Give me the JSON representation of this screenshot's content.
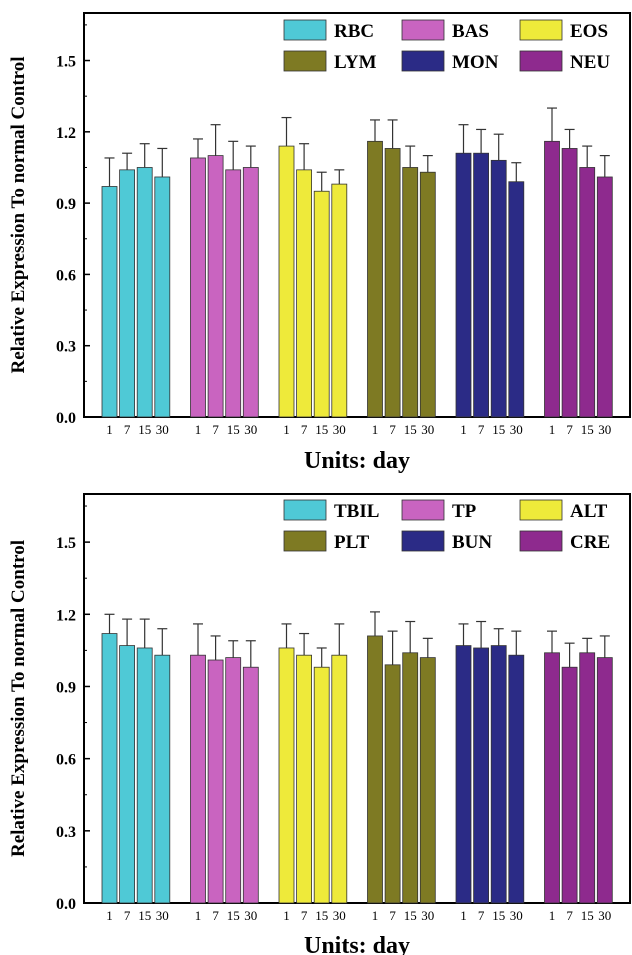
{
  "chart_data": [
    {
      "type": "bar",
      "title": "",
      "ylabel": "Relative Expression To normal Control",
      "xlabel": "Units: day",
      "ylim": [
        0,
        1.7
      ],
      "yticks": [
        "0.0",
        "0.3",
        "0.6",
        "0.9",
        "1.2",
        "1.5"
      ],
      "group_tick_labels": [
        "1",
        "7",
        "15",
        "30"
      ],
      "legend_position": "top-right",
      "series": [
        {
          "name": "RBC",
          "color": "#4fc9d6",
          "values": [
            0.97,
            1.04,
            1.05,
            1.01
          ],
          "errors": [
            0.12,
            0.07,
            0.1,
            0.12
          ]
        },
        {
          "name": "BAS",
          "color": "#c964c0",
          "values": [
            1.09,
            1.1,
            1.04,
            1.05
          ],
          "errors": [
            0.08,
            0.13,
            0.12,
            0.09
          ]
        },
        {
          "name": "EOS",
          "color": "#eeea3a",
          "values": [
            1.14,
            1.04,
            0.95,
            0.98
          ],
          "errors": [
            0.12,
            0.11,
            0.08,
            0.06
          ]
        },
        {
          "name": "LYM",
          "color": "#7e7a23",
          "values": [
            1.16,
            1.13,
            1.05,
            1.03
          ],
          "errors": [
            0.09,
            0.12,
            0.09,
            0.07
          ]
        },
        {
          "name": "MON",
          "color": "#2b2b86",
          "values": [
            1.11,
            1.11,
            1.08,
            0.99
          ],
          "errors": [
            0.12,
            0.1,
            0.11,
            0.08
          ]
        },
        {
          "name": "NEU",
          "color": "#8e2a8e",
          "values": [
            1.16,
            1.13,
            1.05,
            1.01
          ],
          "errors": [
            0.14,
            0.08,
            0.09,
            0.09
          ]
        }
      ]
    },
    {
      "type": "bar",
      "title": "",
      "ylabel": "Relative Expression To normal Control",
      "xlabel": "Units: day",
      "ylim": [
        0,
        1.7
      ],
      "yticks": [
        "0.0",
        "0.3",
        "0.6",
        "0.9",
        "1.2",
        "1.5"
      ],
      "group_tick_labels": [
        "1",
        "7",
        "15",
        "30"
      ],
      "legend_position": "top-right",
      "series": [
        {
          "name": "TBIL",
          "color": "#4fc9d6",
          "values": [
            1.12,
            1.07,
            1.06,
            1.03
          ],
          "errors": [
            0.08,
            0.11,
            0.12,
            0.11
          ]
        },
        {
          "name": "TP",
          "color": "#c964c0",
          "values": [
            1.03,
            1.01,
            1.02,
            0.98
          ],
          "errors": [
            0.13,
            0.1,
            0.07,
            0.11
          ]
        },
        {
          "name": "ALT",
          "color": "#eeea3a",
          "values": [
            1.06,
            1.03,
            0.98,
            1.03
          ],
          "errors": [
            0.1,
            0.09,
            0.08,
            0.13
          ]
        },
        {
          "name": "PLT",
          "color": "#7e7a23",
          "values": [
            1.11,
            0.99,
            1.04,
            1.02
          ],
          "errors": [
            0.1,
            0.14,
            0.13,
            0.08
          ]
        },
        {
          "name": "BUN",
          "color": "#2b2b86",
          "values": [
            1.07,
            1.06,
            1.07,
            1.03
          ],
          "errors": [
            0.09,
            0.11,
            0.07,
            0.1
          ]
        },
        {
          "name": "CRE",
          "color": "#8e2a8e",
          "values": [
            1.04,
            0.98,
            1.04,
            1.02
          ],
          "errors": [
            0.09,
            0.1,
            0.06,
            0.09
          ]
        }
      ]
    }
  ]
}
